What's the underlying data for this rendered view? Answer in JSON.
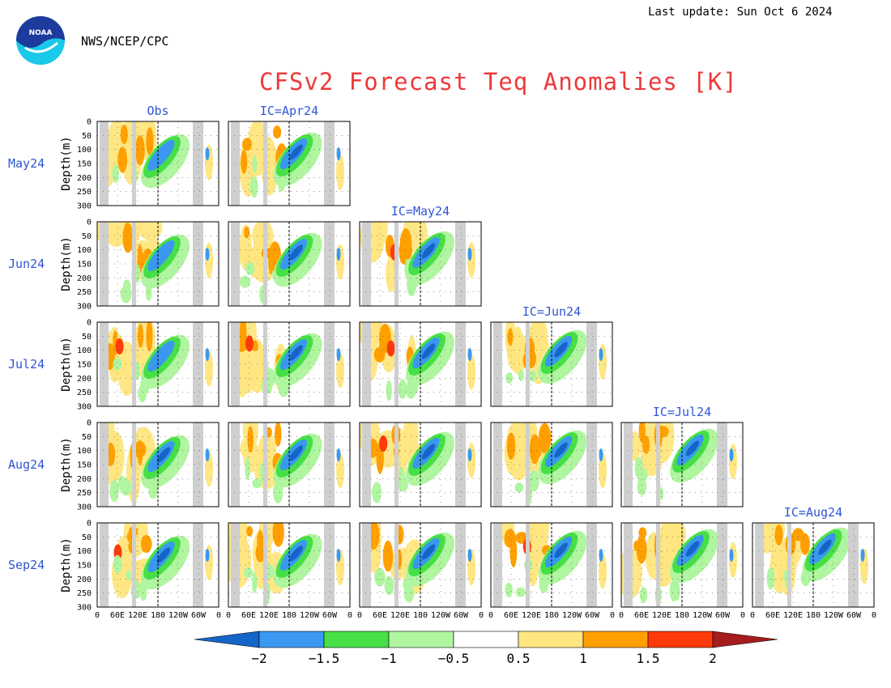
{
  "header": {
    "last_update": "Last update: Sun Oct 6 2024",
    "org": "NWS/NCEP/CPC",
    "logo_text": "NOAA"
  },
  "chart_data": {
    "type": "heatmap",
    "title": "CFSv2 Forecast Teq Anomalies [K]",
    "ylabel": "Depth(m)",
    "column_headers": [
      "Obs",
      "IC=Apr24",
      "IC=May24",
      "IC=Jun24",
      "IC=Jul24",
      "IC=Aug24"
    ],
    "row_labels": [
      "May24",
      "Jun24",
      "Jul24",
      "Aug24",
      "Sep24"
    ],
    "panel_grid": [
      [
        1,
        1,
        0,
        0,
        0,
        0
      ],
      [
        1,
        1,
        1,
        0,
        0,
        0
      ],
      [
        1,
        1,
        1,
        1,
        0,
        0
      ],
      [
        1,
        1,
        1,
        1,
        1,
        0
      ],
      [
        1,
        1,
        1,
        1,
        1,
        1
      ]
    ],
    "x_tick_labels": [
      "0",
      "60E",
      "120E",
      "180",
      "120W",
      "60W",
      "0"
    ],
    "y_tick_labels": [
      "0",
      "50",
      "100",
      "150",
      "200",
      "250",
      "300"
    ],
    "ylim": [
      300,
      0
    ],
    "colorbar": {
      "tick_labels": [
        "−2",
        "−1.5",
        "−1",
        "−0.5",
        "0.5",
        "1",
        "1.5",
        "2"
      ],
      "colors": [
        "#1565c8",
        "#3a98f0",
        "#46e046",
        "#b0f5a0",
        "#ffffff",
        "#ffe680",
        "#ffa000",
        "#ff3a0a",
        "#a51c1c"
      ]
    }
  }
}
